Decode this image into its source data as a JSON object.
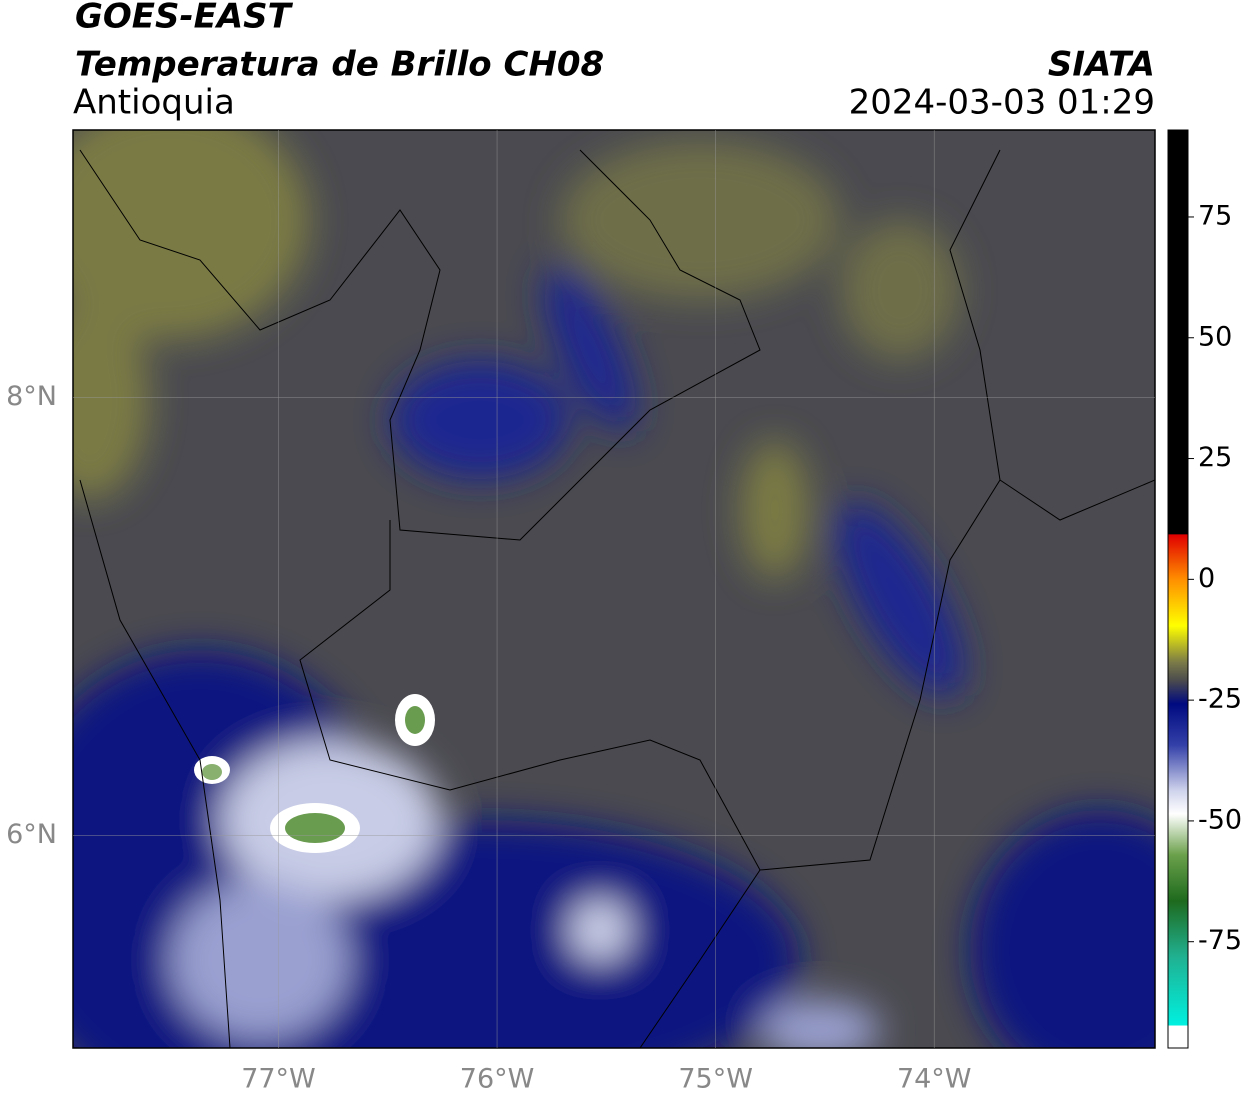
{
  "header": {
    "title": "GOES-EAST",
    "subtitle": "Temperatura de Brillo CH08",
    "region": "Antioquia",
    "source": "SIATA",
    "timestamp": "2024-03-03 01:29"
  },
  "map": {
    "xlim": [
      -77.94,
      -72.99
    ],
    "ylim": [
      5.03,
      9.22
    ],
    "xticks": [
      {
        "value": -77,
        "label": "77°W"
      },
      {
        "value": -76,
        "label": "76°W"
      },
      {
        "value": -75,
        "label": "75°W"
      },
      {
        "value": -74,
        "label": "74°W"
      }
    ],
    "yticks": [
      {
        "value": 6,
        "label": "6°N"
      },
      {
        "value": 8,
        "label": "8°N"
      }
    ]
  },
  "colorbar": {
    "lim": [
      -97,
      93
    ],
    "ticks": [
      75,
      50,
      25,
      0,
      -25,
      -50,
      -75
    ]
  }
}
